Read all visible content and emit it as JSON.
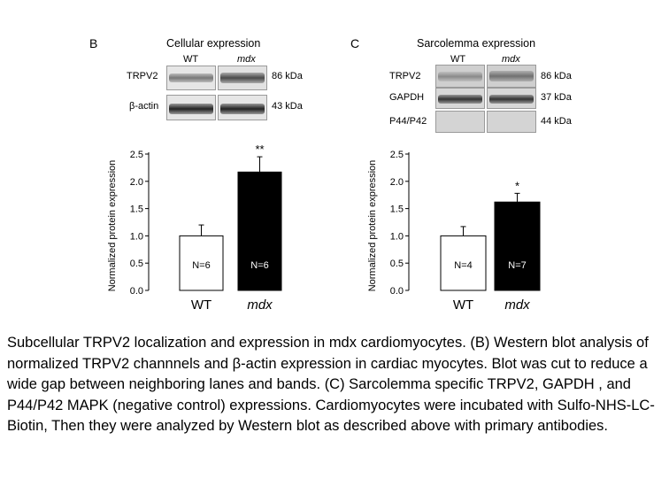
{
  "panel_b": {
    "letter": "B",
    "title": "Cellular expression",
    "lane_wt": "WT",
    "lane_mdx": "mdx",
    "blots": [
      {
        "label": "TRPV2",
        "kda": "86 kDa"
      },
      {
        "label": "β-actin",
        "kda": "43 kDa"
      }
    ]
  },
  "panel_c": {
    "letter": "C",
    "title": "Sarcolemma expression",
    "lane_wt": "WT",
    "lane_mdx": "mdx",
    "blots": [
      {
        "label": "TRPV2",
        "kda": "86 kDa"
      },
      {
        "label": "GAPDH",
        "kda": "37 kDa"
      },
      {
        "label": "P44/P42",
        "kda": "44 kDa"
      }
    ]
  },
  "chart_data": [
    {
      "type": "bar",
      "panel": "B",
      "categories": [
        "WT",
        "mdx"
      ],
      "values": [
        1.0,
        2.17
      ],
      "errors": [
        0.2,
        0.28
      ],
      "bar_labels": [
        "N=6",
        "N=6"
      ],
      "significance": [
        "",
        "**"
      ],
      "bar_colors": [
        "#ffffff",
        "#000000"
      ],
      "ylabel": "Normalized protein expression",
      "ylim": [
        0,
        2.5
      ],
      "yticks": [
        "0.0",
        "0.5",
        "1.0",
        "1.5",
        "2.0",
        "2.5"
      ]
    },
    {
      "type": "bar",
      "panel": "C",
      "categories": [
        "WT",
        "mdx"
      ],
      "values": [
        1.0,
        1.62
      ],
      "errors": [
        0.17,
        0.16
      ],
      "bar_labels": [
        "N=4",
        "N=7"
      ],
      "significance": [
        "",
        "*"
      ],
      "bar_colors": [
        "#ffffff",
        "#000000"
      ],
      "ylabel": "Normalized protein expression",
      "ylim": [
        0,
        2.5
      ],
      "yticks": [
        "0.0",
        "0.5",
        "1.0",
        "1.5",
        "2.0",
        "2.5"
      ]
    }
  ],
  "caption": "Subcellular TRPV2 localization and expression in mdx cardiomyocytes. (B) Western blot analysis of normalized TRPV2 channnels and β-actin expression in cardiac myocytes. Blot was cut to reduce a wide gap between neighboring lanes and bands. (C) Sarcolemma specific TRPV2, GAPDH , and P44/P42 MAPK (negative control) expressions. Cardiomyocytes were incubated with Sulfo-NHS-LC-Biotin, Then they were analyzed by Western blot as described above with primary antibodies."
}
